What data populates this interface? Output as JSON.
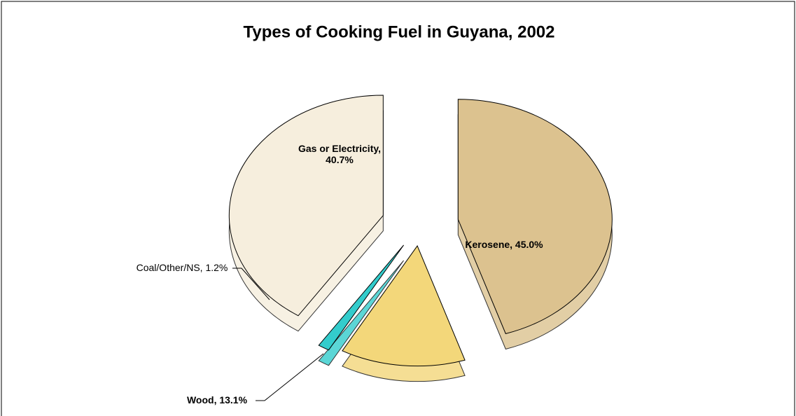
{
  "chart_data": {
    "type": "pie",
    "title": "Types of Cooking Fuel in Guyana, 2002",
    "values": [
      45.0,
      13.1,
      1.2,
      40.7
    ],
    "value_labels": [
      "Kerosene, 45.0%",
      "Wood, 13.1%",
      "Coal/Other/NS, 1.2%",
      "Gas or Electricity, 40.7%"
    ],
    "colors": [
      "#dcc28f",
      "#f3d77a",
      "#33cccc",
      "#f6eedd"
    ]
  }
}
